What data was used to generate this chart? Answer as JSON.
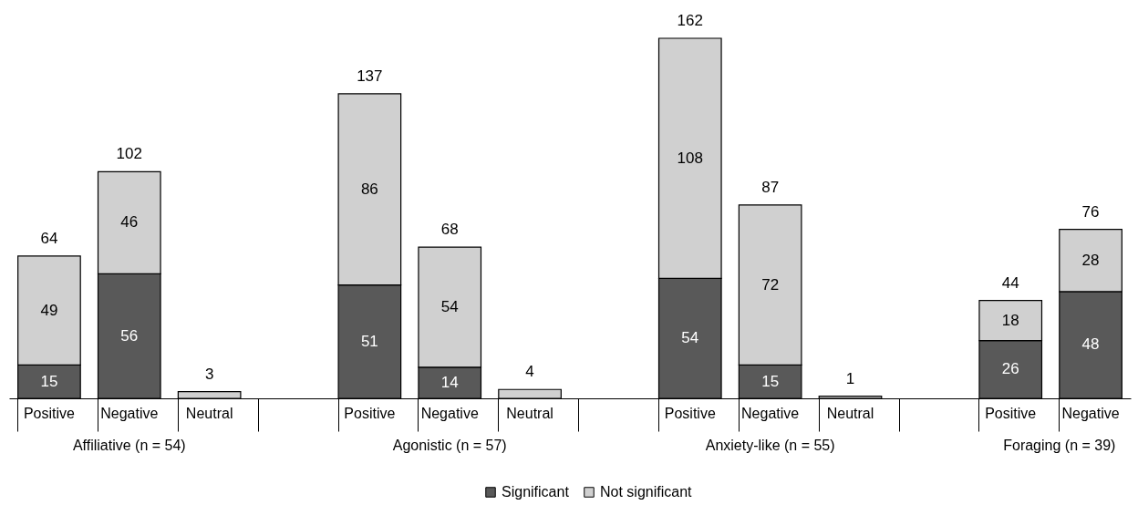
{
  "chart_data": {
    "type": "bar",
    "stacked": true,
    "categories": [
      "Positive",
      "Negative",
      "Neutral",
      null,
      "Positive",
      "Negative",
      "Neutral",
      null,
      "Positive",
      "Negative",
      "Neutral",
      null,
      "Positive",
      "Negative"
    ],
    "series": [
      {
        "name": "Significant",
        "color": "#595959",
        "values": [
          15,
          56,
          null,
          null,
          51,
          14,
          null,
          null,
          54,
          15,
          null,
          null,
          26,
          48
        ],
        "value_labels": [
          "15",
          "56",
          null,
          null,
          "51",
          "14",
          null,
          null,
          "54",
          "15",
          null,
          null,
          "26",
          "48"
        ]
      },
      {
        "name": "Not significant",
        "color": "#d0d0d0",
        "values": [
          49,
          46,
          3,
          null,
          86,
          54,
          4,
          null,
          108,
          72,
          1,
          null,
          18,
          28
        ],
        "value_labels": [
          "49",
          "46",
          null,
          null,
          "86",
          "54",
          null,
          null,
          "108",
          "72",
          null,
          null,
          "18",
          "28"
        ]
      }
    ],
    "totals": [
      "64",
      "102",
      "3",
      null,
      "137",
      "68",
      "4",
      null,
      "162",
      "87",
      "1",
      null,
      "44",
      "76"
    ],
    "annotations": [
      "Affiliative (n = 54)",
      "Agonistic (n = 57)",
      "Anxiety-like (n = 55)",
      "Foraging (n = 39)"
    ],
    "tick_labels": "x",
    "grid": false,
    "legend": "bottom"
  }
}
